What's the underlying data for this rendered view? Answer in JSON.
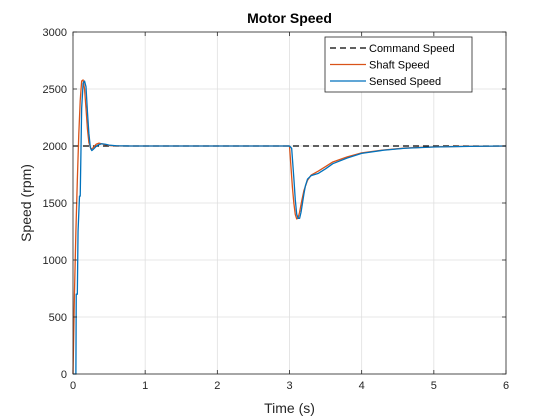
{
  "chart_data": {
    "type": "line",
    "title": "Motor Speed",
    "xlabel": "Time (s)",
    "ylabel": "Speed (rpm)",
    "xlim": [
      0,
      6
    ],
    "ylim": [
      0,
      3000
    ],
    "xticks": [
      0,
      1,
      2,
      3,
      4,
      5,
      6
    ],
    "yticks": [
      0,
      500,
      1000,
      1500,
      2000,
      2500,
      3000
    ],
    "grid": true,
    "legend_position": "top-right",
    "series": [
      {
        "name": "Command Speed",
        "color": "#000000",
        "style": "dashed",
        "x": [
          0,
          0.14,
          0.3,
          0.42,
          0.6,
          1.0,
          2.0,
          3.0,
          3.1,
          3.2,
          3.4,
          3.8,
          4.5,
          5.0,
          6.0
        ],
        "y": [
          2000,
          2000,
          2000,
          2000,
          2000,
          2000,
          2000,
          2000,
          2000,
          2000,
          2000,
          2000,
          2000,
          2000,
          2000
        ]
      },
      {
        "name": "Shaft Speed",
        "color": "#d95319",
        "style": "solid",
        "x": [
          0,
          0.02,
          0.04,
          0.06,
          0.08,
          0.1,
          0.12,
          0.14,
          0.16,
          0.18,
          0.2,
          0.22,
          0.25,
          0.28,
          0.32,
          0.36,
          0.42,
          0.5,
          0.6,
          0.8,
          1.0,
          2.0,
          3.0,
          3.02,
          3.04,
          3.06,
          3.08,
          3.1,
          3.12,
          3.14,
          3.17,
          3.2,
          3.25,
          3.3,
          3.4,
          3.5,
          3.6,
          3.8,
          4.0,
          4.3,
          4.6,
          5.0,
          5.5,
          6.0
        ],
        "y": [
          0,
          700,
          1250,
          1700,
          2100,
          2400,
          2570,
          2580,
          2500,
          2330,
          2150,
          2030,
          1970,
          1985,
          2015,
          2025,
          2015,
          2005,
          2000,
          2000,
          2000,
          2000,
          2000,
          1820,
          1640,
          1500,
          1400,
          1360,
          1370,
          1420,
          1520,
          1610,
          1700,
          1745,
          1780,
          1820,
          1860,
          1905,
          1940,
          1965,
          1982,
          1992,
          1998,
          2000
        ]
      },
      {
        "name": "Sensed Speed",
        "color": "#0072bd",
        "style": "solid",
        "x": [
          0,
          0.04,
          0.045,
          0.06,
          0.07,
          0.09,
          0.1,
          0.12,
          0.14,
          0.16,
          0.18,
          0.2,
          0.22,
          0.24,
          0.26,
          0.28,
          0.31,
          0.35,
          0.4,
          0.45,
          0.5,
          0.6,
          0.8,
          1.0,
          2.0,
          3.0,
          3.03,
          3.06,
          3.08,
          3.1,
          3.12,
          3.14,
          3.16,
          3.18,
          3.2,
          3.22,
          3.25,
          3.3,
          3.4,
          3.5,
          3.6,
          3.8,
          4.0,
          4.3,
          4.6,
          5.0,
          5.5,
          6.0
        ],
        "y": [
          0,
          0,
          700,
          700,
          1250,
          1560,
          1560,
          2330,
          2550,
          2570,
          2520,
          2300,
          2110,
          1990,
          1960,
          1970,
          1990,
          2010,
          2020,
          2015,
          2008,
          2002,
          2000,
          2000,
          2000,
          2000,
          1980,
          1720,
          1530,
          1400,
          1365,
          1365,
          1420,
          1500,
          1580,
          1650,
          1710,
          1740,
          1760,
          1800,
          1845,
          1895,
          1935,
          1963,
          1980,
          1991,
          1997,
          2000
        ]
      }
    ]
  }
}
